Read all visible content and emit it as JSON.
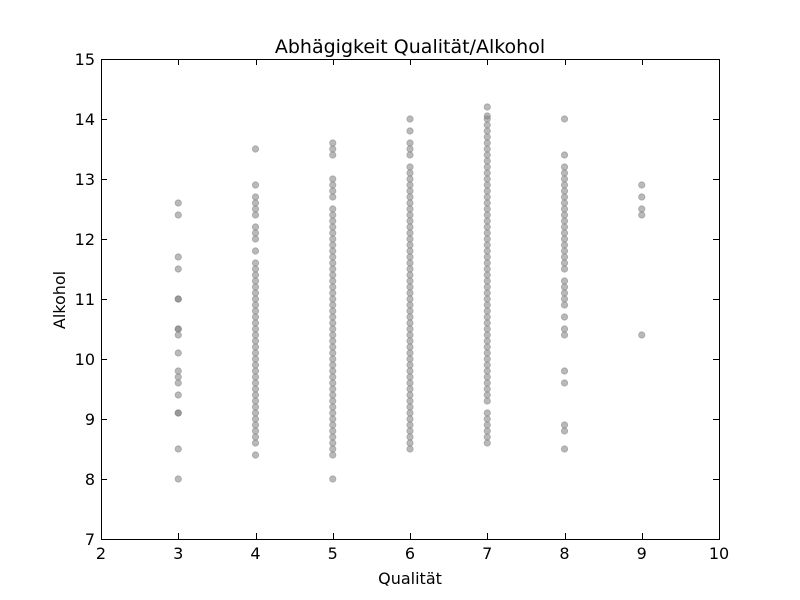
{
  "chart_data": {
    "type": "scatter",
    "title": "Abhägigkeit Qualität/Alkohol",
    "xlabel": "Qualität",
    "ylabel": "Alkohol",
    "xlim": [
      2,
      10
    ],
    "ylim": [
      7,
      15
    ],
    "xticks": [
      2,
      3,
      4,
      5,
      6,
      7,
      8,
      9,
      10
    ],
    "yticks": [
      7,
      8,
      9,
      10,
      11,
      12,
      13,
      14,
      15
    ],
    "grid": false,
    "legend": "none",
    "point_color": "#808080",
    "point_opacity": 0.55,
    "points": [
      {
        "quality": 3,
        "alcohol": [
          8.0,
          8.5,
          9.1,
          9.1,
          9.4,
          9.6,
          9.7,
          9.8,
          10.1,
          10.4,
          10.5,
          10.5,
          11.0,
          11.0,
          11.5,
          11.7,
          12.4,
          12.6
        ]
      },
      {
        "quality": 4,
        "alcohol": [
          8.4,
          8.6,
          8.7,
          8.8,
          8.9,
          9.0,
          9.1,
          9.2,
          9.3,
          9.4,
          9.5,
          9.6,
          9.7,
          9.8,
          9.9,
          10.0,
          10.1,
          10.2,
          10.3,
          10.4,
          10.5,
          10.6,
          10.7,
          10.8,
          10.9,
          11.0,
          11.1,
          11.2,
          11.3,
          11.4,
          11.5,
          11.6,
          11.8,
          12.0,
          12.1,
          12.2,
          12.4,
          12.5,
          12.6,
          12.7,
          12.9,
          13.5
        ]
      },
      {
        "quality": 5,
        "alcohol": [
          8.0,
          8.4,
          8.5,
          8.6,
          8.7,
          8.8,
          8.9,
          9.0,
          9.1,
          9.2,
          9.3,
          9.4,
          9.5,
          9.6,
          9.7,
          9.8,
          9.9,
          10.0,
          10.1,
          10.2,
          10.3,
          10.4,
          10.5,
          10.6,
          10.7,
          10.8,
          10.9,
          11.0,
          11.1,
          11.2,
          11.3,
          11.4,
          11.5,
          11.6,
          11.7,
          11.8,
          11.9,
          12.0,
          12.1,
          12.2,
          12.3,
          12.4,
          12.5,
          12.7,
          12.8,
          12.9,
          13.0,
          13.4,
          13.5,
          13.6
        ]
      },
      {
        "quality": 6,
        "alcohol": [
          8.5,
          8.6,
          8.7,
          8.8,
          8.9,
          9.0,
          9.1,
          9.2,
          9.3,
          9.4,
          9.5,
          9.6,
          9.7,
          9.8,
          9.9,
          10.0,
          10.1,
          10.2,
          10.3,
          10.4,
          10.5,
          10.6,
          10.7,
          10.8,
          10.9,
          11.0,
          11.1,
          11.2,
          11.3,
          11.4,
          11.5,
          11.6,
          11.7,
          11.8,
          11.9,
          12.0,
          12.1,
          12.2,
          12.3,
          12.4,
          12.5,
          12.6,
          12.7,
          12.8,
          12.9,
          13.0,
          13.1,
          13.2,
          13.4,
          13.5,
          13.6,
          13.8,
          14.0
        ]
      },
      {
        "quality": 7,
        "alcohol": [
          8.6,
          8.7,
          8.8,
          8.9,
          9.0,
          9.1,
          9.3,
          9.4,
          9.5,
          9.6,
          9.7,
          9.8,
          9.9,
          10.0,
          10.1,
          10.2,
          10.3,
          10.4,
          10.5,
          10.6,
          10.7,
          10.8,
          10.9,
          11.0,
          11.1,
          11.2,
          11.3,
          11.4,
          11.5,
          11.6,
          11.7,
          11.8,
          11.9,
          12.0,
          12.1,
          12.2,
          12.3,
          12.4,
          12.5,
          12.6,
          12.7,
          12.8,
          12.9,
          13.0,
          13.1,
          13.2,
          13.3,
          13.4,
          13.5,
          13.6,
          13.7,
          13.8,
          13.9,
          14.0,
          14.05,
          14.2
        ]
      },
      {
        "quality": 8,
        "alcohol": [
          8.5,
          8.8,
          8.9,
          9.6,
          9.8,
          10.4,
          10.5,
          10.7,
          10.9,
          11.0,
          11.1,
          11.2,
          11.3,
          11.5,
          11.6,
          11.7,
          11.8,
          11.9,
          12.0,
          12.1,
          12.2,
          12.3,
          12.4,
          12.5,
          12.6,
          12.7,
          12.8,
          12.9,
          13.0,
          13.1,
          13.2,
          13.4,
          14.0
        ]
      },
      {
        "quality": 9,
        "alcohol": [
          10.4,
          12.4,
          12.5,
          12.7,
          12.9
        ]
      }
    ]
  }
}
